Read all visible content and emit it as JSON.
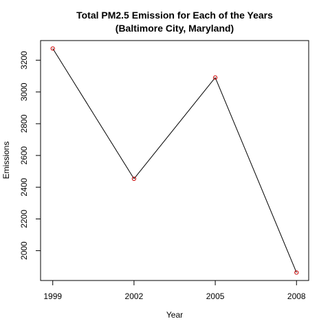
{
  "chart_data": {
    "type": "line",
    "title": "Total PM2.5 Emission for Each of the Years",
    "subtitle": "(Baltimore City, Maryland)",
    "xlabel": "Year",
    "ylabel": "Emissions",
    "x": [
      1999,
      2002,
      2005,
      2008
    ],
    "y": [
      3274,
      2453,
      3091,
      1862
    ],
    "x_ticks": [
      "1999",
      "2002",
      "2005",
      "2008"
    ],
    "y_ticks": [
      "2000",
      "2200",
      "2400",
      "2600",
      "2800",
      "3000",
      "3200"
    ],
    "xlim": [
      1998.55,
      2008.45
    ],
    "ylim": [
      1812,
      3324
    ],
    "grid": false,
    "line_color": "#000000",
    "marker_color": "#cc0000",
    "marker": "open-circle"
  }
}
